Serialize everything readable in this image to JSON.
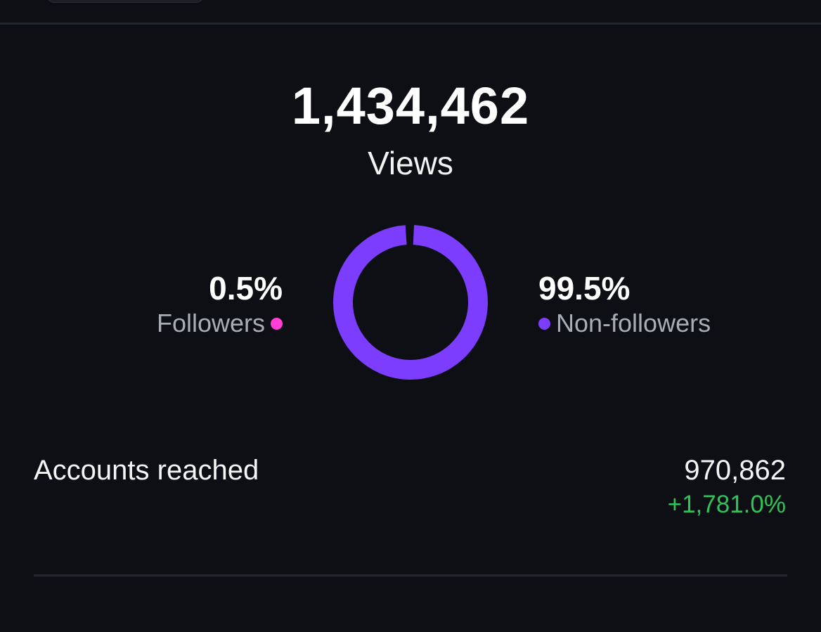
{
  "views": {
    "value": "1,434,462",
    "label": "Views"
  },
  "audience": {
    "followers": {
      "percent": "0.5%",
      "label": "Followers",
      "share": 0.005,
      "color": "#ff3fd8"
    },
    "non_followers": {
      "percent": "99.5%",
      "label": "Non-followers",
      "share": 0.995,
      "color": "#7c3dff"
    }
  },
  "accounts_reached": {
    "label": "Accounts reached",
    "value": "970,862",
    "change": "+1,781.0%",
    "change_color": "#2fc35a"
  }
}
